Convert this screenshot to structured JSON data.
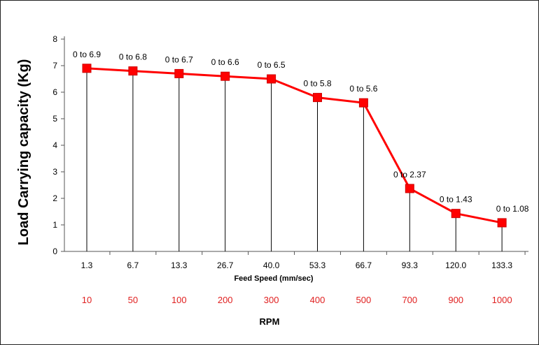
{
  "chart_data": {
    "type": "line",
    "title": "",
    "xlabel": "Feed Speed (mm/sec)",
    "ylabel": "Load Carrying capacity (Kg)",
    "secondary_xlabel": "RPM",
    "categories": [
      "1.3",
      "6.7",
      "13.3",
      "26.7",
      "40.0",
      "53.3",
      "66.7",
      "93.3",
      "120.0",
      "133.3"
    ],
    "rpm": [
      "10",
      "50",
      "100",
      "200",
      "300",
      "400",
      "500",
      "700",
      "900",
      "1000"
    ],
    "series": [
      {
        "values": [
          6.9,
          6.8,
          6.7,
          6.6,
          6.5,
          5.8,
          5.6,
          2.37,
          1.43,
          1.08
        ],
        "data_labels": [
          "0 to 6.9",
          "0 to 6.8",
          "0 to 6.7",
          "0 to 6.6",
          "0 to 6.5",
          "0 to 5.8",
          "0 to 5.6",
          "0 to 2.37",
          "0 to 1.43",
          "0 to 1.08"
        ],
        "color": "#ff0000"
      }
    ],
    "ylim": [
      0,
      8
    ],
    "yticks": [
      "0",
      "1",
      "2",
      "3",
      "4",
      "5",
      "6",
      "7",
      "8"
    ],
    "drop_lines": true,
    "grid": false,
    "legend": "none",
    "secondary_label_color": "#e02020"
  }
}
